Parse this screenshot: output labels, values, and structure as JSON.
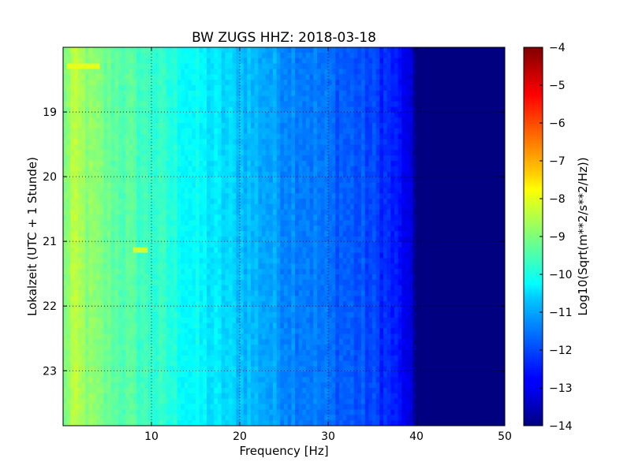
{
  "chart_data": {
    "type": "heatmap",
    "title": "BW ZUGS HHZ: 2018-03-18",
    "xlabel": "Frequency [Hz]",
    "ylabel": "Lokalzeit (UTC + 1 Stunde)",
    "xlim": [
      0,
      50
    ],
    "ylim": [
      18.0,
      23.85
    ],
    "y_inverted": true,
    "x_ticks": [
      10,
      20,
      30,
      40,
      50
    ],
    "x_tick_labels": [
      "10",
      "20",
      "30",
      "40",
      "50"
    ],
    "y_ticks": [
      19,
      20,
      21,
      22,
      23
    ],
    "y_tick_labels": [
      "19",
      "20",
      "21",
      "22",
      "23"
    ],
    "grid": true,
    "colormap": "jet",
    "colorbar": {
      "label": "Log10(Sqrt(m**2/s**2/Hz))",
      "range": [
        -14,
        -4
      ],
      "ticks": [
        -4,
        -5,
        -6,
        -7,
        -8,
        -9,
        -10,
        -11,
        -12,
        -13,
        -14
      ],
      "tick_labels": [
        "−4",
        "−5",
        "−6",
        "−7",
        "−8",
        "−9",
        "−10",
        "−11",
        "−12",
        "−13",
        "−14"
      ]
    },
    "spectrum_profile": {
      "frequency_hz": [
        0,
        1,
        2,
        3,
        5,
        8,
        10,
        12,
        15,
        18,
        20,
        22,
        25,
        28,
        30,
        33,
        35,
        37,
        38.5,
        39.5,
        40,
        50
      ],
      "log10_amplitude": [
        -9.2,
        -8.5,
        -8.7,
        -8.9,
        -9.2,
        -9.5,
        -9.7,
        -9.9,
        -10.3,
        -10.6,
        -10.8,
        -11.0,
        -11.3,
        -11.5,
        -11.7,
        -11.9,
        -12.1,
        -12.4,
        -12.8,
        -13.4,
        -14.0,
        -14.0
      ]
    },
    "hotspots": [
      {
        "time": 18.28,
        "freq_from": 0.5,
        "freq_to": 4.0,
        "value": -8.0
      },
      {
        "time": 21.12,
        "freq_from": 8.0,
        "freq_to": 9.5,
        "value": -8.2
      }
    ]
  }
}
